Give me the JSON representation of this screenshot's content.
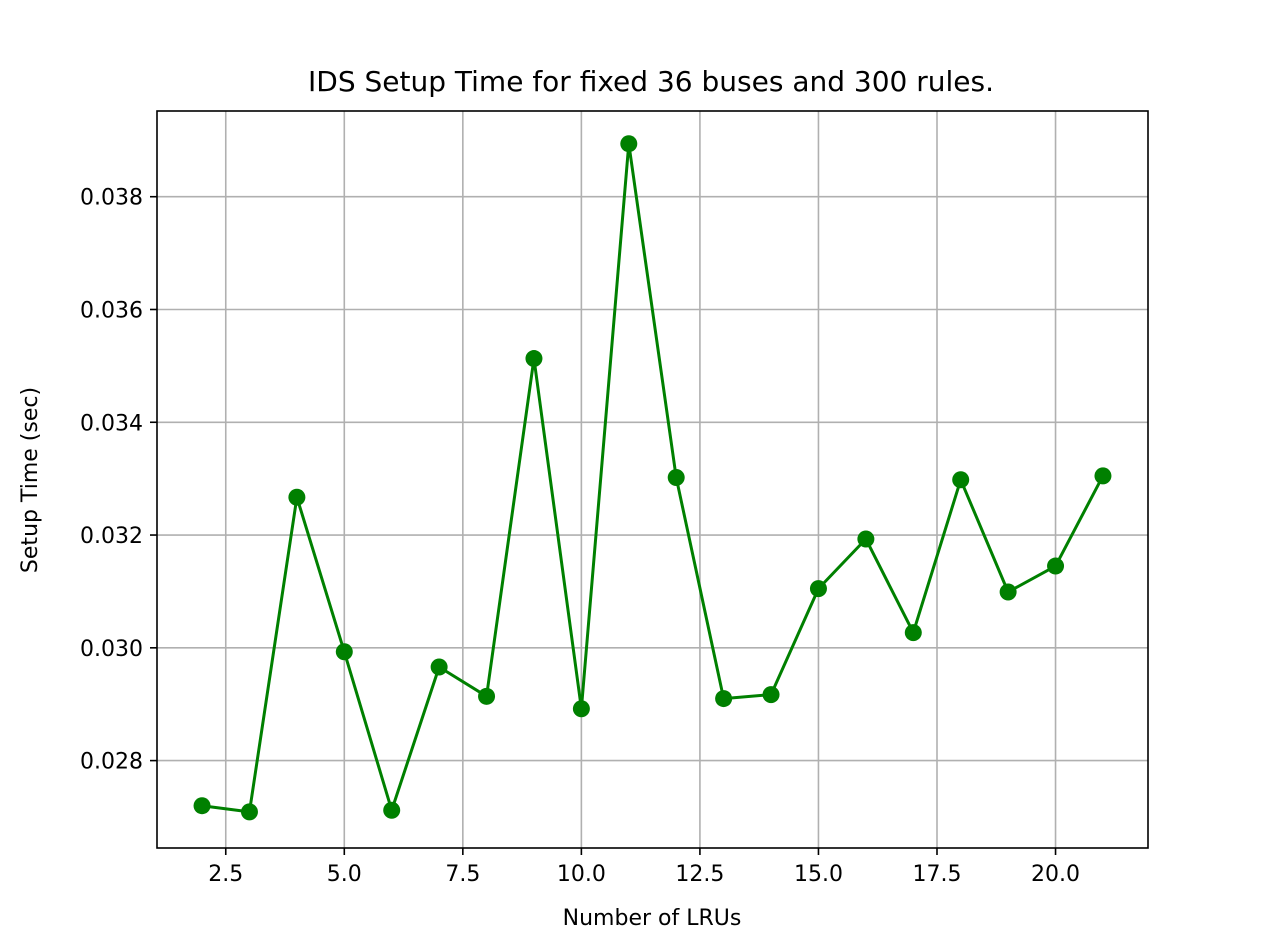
{
  "chart_data": {
    "type": "line",
    "title": "IDS Setup Time for fixed 36 buses and 300 rules.",
    "xlabel": "Number of LRUs",
    "ylabel": "Setup Time (sec)",
    "xlim": [
      1.05,
      21.95
    ],
    "ylim": [
      0.02645,
      0.03952
    ],
    "x_ticks": [
      2.5,
      5.0,
      7.5,
      10.0,
      12.5,
      15.0,
      17.5,
      20.0
    ],
    "x_tick_labels": [
      "2.5",
      "5.0",
      "7.5",
      "10.0",
      "12.5",
      "15.0",
      "17.5",
      "20.0"
    ],
    "y_ticks": [
      0.028,
      0.03,
      0.032,
      0.034,
      0.036,
      0.038
    ],
    "y_tick_labels": [
      "0.028",
      "0.030",
      "0.032",
      "0.034",
      "0.036",
      "0.038"
    ],
    "grid": true,
    "color": "#008000",
    "series": [
      {
        "x": [
          2,
          3,
          4,
          5,
          6,
          7,
          8,
          9,
          10,
          11,
          12,
          13,
          14,
          15,
          16,
          17,
          18,
          19,
          20,
          21
        ],
        "values": [
          0.0272,
          0.02709,
          0.03267,
          0.02993,
          0.02712,
          0.02966,
          0.02914,
          0.03513,
          0.02892,
          0.03894,
          0.03302,
          0.0291,
          0.02917,
          0.03105,
          0.03193,
          0.03027,
          0.03298,
          0.03099,
          0.03145,
          0.03305
        ]
      }
    ]
  }
}
